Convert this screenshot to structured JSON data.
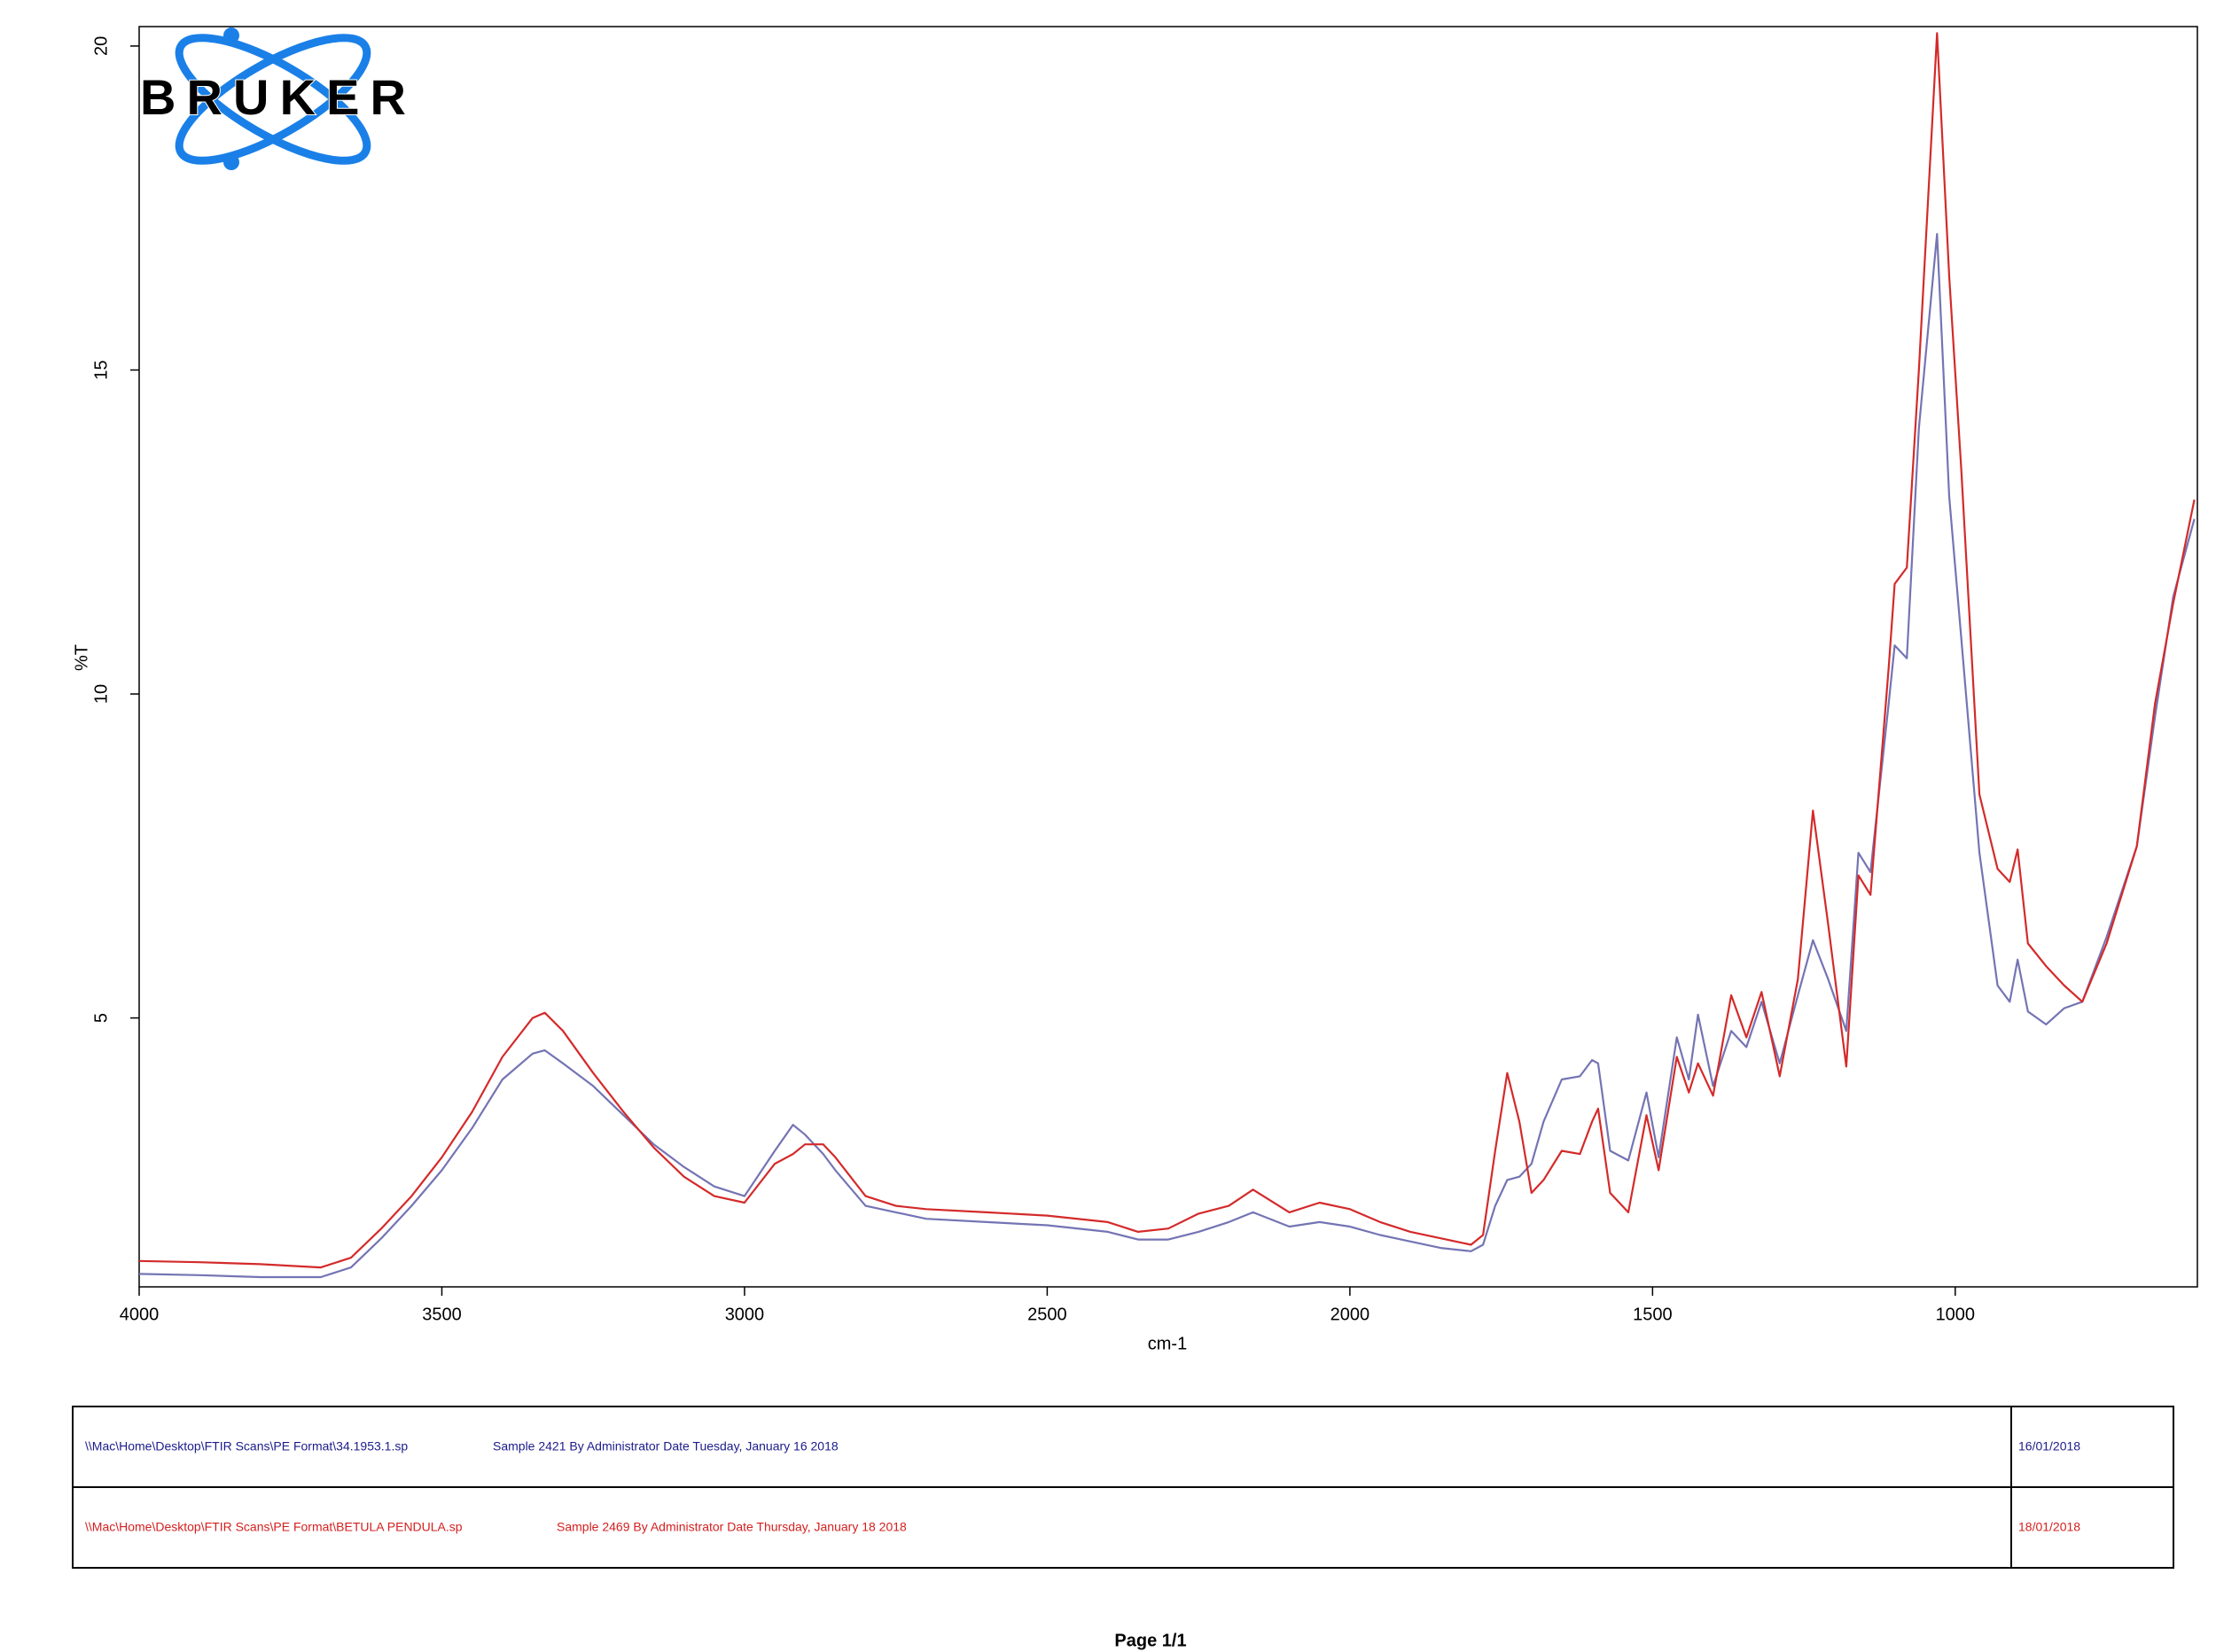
{
  "logo": "BRUKER",
  "chart_data": {
    "type": "line",
    "x_label": "cm-1",
    "y_label": "%T",
    "xlim": [
      4000,
      600
    ],
    "ylim": [
      0.85,
      20.3
    ],
    "xticks": [
      4000,
      3500,
      3000,
      2500,
      2000,
      1500,
      1000
    ],
    "yticks": [
      5,
      10,
      15,
      20
    ],
    "x": [
      4000,
      3900,
      3800,
      3700,
      3650,
      3600,
      3550,
      3500,
      3450,
      3400,
      3350,
      3330,
      3300,
      3250,
      3200,
      3150,
      3100,
      3050,
      3000,
      2950,
      2920,
      2900,
      2870,
      2850,
      2800,
      2750,
      2700,
      2600,
      2500,
      2400,
      2350,
      2300,
      2250,
      2200,
      2160,
      2100,
      2050,
      2000,
      1950,
      1900,
      1850,
      1800,
      1780,
      1760,
      1740,
      1720,
      1700,
      1680,
      1650,
      1620,
      1600,
      1590,
      1570,
      1540,
      1510,
      1490,
      1460,
      1440,
      1425,
      1400,
      1370,
      1345,
      1320,
      1290,
      1260,
      1235,
      1210,
      1180,
      1160,
      1140,
      1110,
      1100,
      1080,
      1060,
      1030,
      1010,
      990,
      960,
      930,
      910,
      897,
      880,
      850,
      820,
      790,
      750,
      700,
      670,
      640,
      605
    ],
    "series": [
      {
        "color": "#7474b4",
        "values": [
          1.05,
          1.03,
          1.0,
          1.0,
          1.15,
          1.6,
          2.1,
          2.65,
          3.3,
          4.05,
          4.45,
          4.5,
          4.3,
          3.95,
          3.5,
          3.05,
          2.7,
          2.4,
          2.25,
          2.95,
          3.35,
          3.2,
          2.9,
          2.65,
          2.1,
          2.0,
          1.9,
          1.85,
          1.8,
          1.7,
          1.58,
          1.58,
          1.7,
          1.85,
          2.0,
          1.78,
          1.85,
          1.78,
          1.65,
          1.55,
          1.45,
          1.4,
          1.5,
          2.1,
          2.5,
          2.55,
          2.75,
          3.4,
          4.05,
          4.1,
          4.35,
          4.3,
          2.95,
          2.8,
          3.85,
          2.85,
          4.7,
          4.05,
          5.05,
          3.95,
          4.8,
          4.55,
          5.25,
          4.3,
          5.35,
          6.2,
          5.6,
          4.8,
          7.55,
          7.25,
          9.85,
          10.75,
          10.55,
          14.1,
          17.1,
          13.05,
          10.85,
          7.55,
          5.5,
          5.25,
          5.9,
          5.1,
          4.9,
          5.15,
          5.25,
          6.25,
          7.65,
          9.65,
          11.5,
          12.7
        ]
      },
      {
        "color": "#d42a2a",
        "values": [
          1.25,
          1.23,
          1.2,
          1.15,
          1.3,
          1.75,
          2.25,
          2.85,
          3.55,
          4.4,
          5.0,
          5.08,
          4.8,
          4.15,
          3.55,
          3.0,
          2.55,
          2.25,
          2.15,
          2.75,
          2.9,
          3.05,
          3.05,
          2.85,
          2.25,
          2.1,
          2.05,
          2.0,
          1.95,
          1.85,
          1.7,
          1.75,
          1.98,
          2.1,
          2.35,
          2.0,
          2.15,
          2.05,
          1.85,
          1.7,
          1.6,
          1.5,
          1.65,
          2.95,
          4.15,
          3.4,
          2.3,
          2.5,
          2.95,
          2.9,
          3.4,
          3.6,
          2.3,
          2.0,
          3.5,
          2.65,
          4.4,
          3.85,
          4.3,
          3.8,
          5.35,
          4.7,
          5.4,
          4.1,
          5.6,
          8.2,
          6.45,
          4.25,
          7.2,
          6.9,
          10.4,
          11.7,
          11.95,
          15.0,
          20.2,
          16.45,
          13.45,
          8.45,
          7.3,
          7.1,
          7.6,
          6.15,
          5.8,
          5.5,
          5.25,
          6.15,
          7.65,
          9.85,
          11.4,
          13.0
        ]
      }
    ]
  },
  "samples": [
    {
      "file": "\\\\Mac\\Home\\Desktop\\FTIR Scans\\PE Format\\34.1953.1.sp",
      "description": "Sample 2421 By Administrator Date Tuesday, January 16 2018",
      "date": "16/01/2018",
      "color": "#1c1c8c"
    },
    {
      "file": "\\\\Mac\\Home\\Desktop\\FTIR Scans\\PE Format\\BETULA PENDULA.sp",
      "description": "Sample 2469 By Administrator Date Thursday, January 18 2018",
      "date": "18/01/2018",
      "color": "#d42020"
    }
  ],
  "footer": "Page 1/1"
}
